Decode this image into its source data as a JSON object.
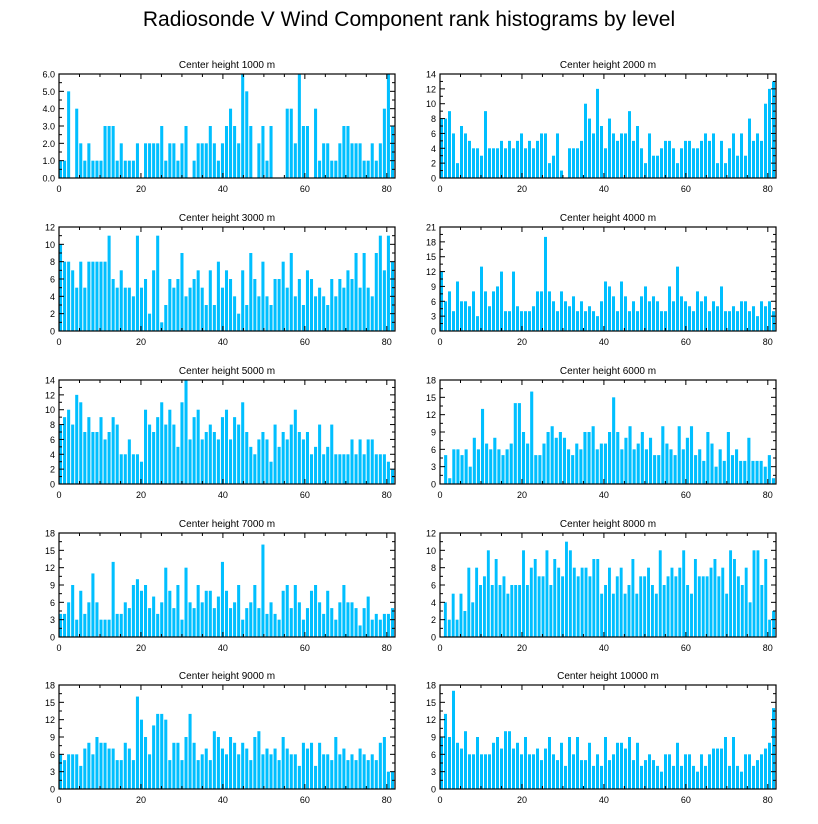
{
  "title": "Radiosonde V Wind Component rank histograms by level",
  "bar_color": "#00bfff",
  "chart_data": [
    {
      "type": "bar",
      "title": "Center height 1000 m",
      "ylim": [
        0,
        6
      ],
      "yticks": [
        "0.0",
        "1.0",
        "2.0",
        "3.0",
        "4.0",
        "5.0",
        "6.0"
      ],
      "ytick_values": [
        0,
        1,
        2,
        3,
        4,
        5,
        6
      ],
      "xlim": [
        0,
        82
      ],
      "xticks": [
        0,
        20,
        40,
        60,
        80
      ],
      "xlabel": "",
      "ylabel": "",
      "values": [
        1,
        1,
        5,
        0,
        4,
        2,
        1,
        2,
        1,
        1,
        1,
        3,
        3,
        3,
        1,
        2,
        1,
        1,
        1,
        2,
        0,
        2,
        2,
        2,
        2,
        3,
        1,
        2,
        2,
        1,
        2,
        3,
        0,
        1,
        2,
        2,
        2,
        3,
        2,
        1,
        2,
        3,
        4,
        3,
        2,
        6,
        5,
        3,
        0,
        2,
        3,
        1,
        3,
        0,
        0,
        0,
        4,
        4,
        2,
        6,
        3,
        3,
        0,
        4,
        1,
        2,
        2,
        1,
        1,
        2,
        3,
        3,
        2,
        2,
        2,
        1,
        1,
        2,
        1,
        2,
        4,
        6,
        3
      ]
    },
    {
      "type": "bar",
      "title": "Center height 2000 m",
      "ylim": [
        0,
        14
      ],
      "yticks": [
        "0",
        "2",
        "4",
        "6",
        "8",
        "10",
        "12",
        "14"
      ],
      "ytick_values": [
        0,
        2,
        4,
        6,
        8,
        10,
        12,
        14
      ],
      "xlim": [
        0,
        82
      ],
      "xticks": [
        0,
        20,
        40,
        60,
        80
      ],
      "xlabel": "",
      "ylabel": "",
      "values": [
        8,
        8,
        9,
        6,
        2,
        7,
        6,
        5,
        4,
        4,
        3,
        9,
        4,
        4,
        4,
        5,
        4,
        5,
        4,
        5,
        6,
        4,
        5,
        4,
        5,
        6,
        6,
        2,
        3,
        6,
        1,
        0,
        4,
        4,
        4,
        5,
        10,
        8,
        6,
        12,
        7,
        4,
        8,
        6,
        5,
        6,
        6,
        9,
        5,
        7,
        4,
        2,
        6,
        3,
        3,
        4,
        5,
        5,
        4,
        2,
        4,
        5,
        5,
        4,
        4,
        5,
        6,
        5,
        6,
        2,
        5,
        2,
        4,
        6,
        3,
        6,
        3,
        8,
        5,
        6,
        5,
        10,
        12,
        13
      ]
    },
    {
      "type": "bar",
      "title": "Center height 3000 m",
      "ylim": [
        0,
        12
      ],
      "yticks": [
        "0",
        "2",
        "4",
        "6",
        "8",
        "10",
        "12"
      ],
      "ytick_values": [
        0,
        2,
        4,
        6,
        8,
        10,
        12
      ],
      "xlim": [
        0,
        82
      ],
      "xticks": [
        0,
        20,
        40,
        60,
        80
      ],
      "xlabel": "",
      "ylabel": "",
      "values": [
        10,
        8,
        8,
        7,
        5,
        8,
        5,
        8,
        8,
        8,
        8,
        8,
        11,
        6,
        5,
        7,
        5,
        5,
        4,
        11,
        5,
        6,
        2,
        7,
        11,
        1,
        3,
        6,
        5,
        6,
        9,
        4,
        5,
        6,
        7,
        5,
        3,
        7,
        3,
        8,
        5,
        7,
        6,
        4,
        2,
        7,
        3,
        9,
        6,
        4,
        8,
        4,
        3,
        6,
        6,
        8,
        5,
        9,
        4,
        6,
        3,
        7,
        6,
        4,
        5,
        4,
        3,
        6,
        4,
        6,
        5,
        7,
        6,
        9,
        5,
        9,
        5,
        4,
        9,
        11,
        7,
        11,
        8
      ]
    },
    {
      "type": "bar",
      "title": "Center height 4000 m",
      "ylim": [
        0,
        21
      ],
      "yticks": [
        "0",
        "3",
        "6",
        "9",
        "12",
        "15",
        "18",
        "21"
      ],
      "ytick_values": [
        0,
        3,
        6,
        9,
        12,
        15,
        18,
        21
      ],
      "xlim": [
        0,
        82
      ],
      "xticks": [
        0,
        20,
        40,
        60,
        80
      ],
      "xlabel": "",
      "ylabel": "",
      "values": [
        12,
        6,
        8,
        4,
        10,
        6,
        6,
        5,
        8,
        3,
        13,
        8,
        5,
        8,
        9,
        12,
        4,
        4,
        12,
        5,
        4,
        4,
        4,
        5,
        8,
        8,
        19,
        8,
        6,
        4,
        8,
        6,
        5,
        7,
        4,
        6,
        4,
        5,
        4,
        3,
        6,
        10,
        9,
        7,
        4,
        10,
        7,
        4,
        6,
        4,
        7,
        9,
        6,
        7,
        6,
        4,
        4,
        9,
        6,
        13,
        7,
        6,
        5,
        4,
        8,
        6,
        7,
        4,
        6,
        5,
        9,
        4,
        4,
        5,
        4,
        6,
        6,
        4,
        5,
        3,
        6,
        5,
        6,
        4
      ]
    },
    {
      "type": "bar",
      "title": "Center height 5000 m",
      "ylim": [
        0,
        14
      ],
      "yticks": [
        "0",
        "2",
        "4",
        "6",
        "8",
        "10",
        "12",
        "14"
      ],
      "ytick_values": [
        0,
        2,
        4,
        6,
        8,
        10,
        12,
        14
      ],
      "xlim": [
        0,
        82
      ],
      "xticks": [
        0,
        20,
        40,
        60,
        80
      ],
      "xlabel": "",
      "ylabel": "",
      "values": [
        8,
        9,
        10,
        8,
        12,
        11,
        7,
        9,
        7,
        7,
        9,
        6,
        7,
        9,
        8,
        4,
        4,
        6,
        4,
        4,
        3,
        10,
        8,
        7,
        9,
        11,
        8,
        10,
        8,
        5,
        11,
        14,
        6,
        9,
        10,
        6,
        7,
        8,
        7,
        6,
        9,
        10,
        6,
        9,
        8,
        11,
        7,
        5,
        4,
        6,
        7,
        6,
        3,
        8,
        5,
        7,
        6,
        8,
        10,
        7,
        6,
        7,
        4,
        5,
        8,
        4,
        5,
        8,
        4,
        4,
        4,
        4,
        6,
        4,
        6,
        4,
        6,
        6,
        4,
        4,
        4,
        3,
        2
      ]
    },
    {
      "type": "bar",
      "title": "Center height 6000 m",
      "ylim": [
        0,
        18
      ],
      "yticks": [
        "0",
        "3",
        "6",
        "9",
        "12",
        "15",
        "18"
      ],
      "ytick_values": [
        0,
        3,
        6,
        9,
        12,
        15,
        18
      ],
      "xlim": [
        0,
        82
      ],
      "xticks": [
        0,
        20,
        40,
        60,
        80
      ],
      "xlabel": "",
      "ylabel": "",
      "values": [
        0,
        5,
        1,
        6,
        6,
        5,
        6,
        3,
        8,
        6,
        13,
        7,
        6,
        8,
        6,
        5,
        6,
        7,
        14,
        14,
        9,
        7,
        16,
        5,
        5,
        7,
        9,
        10,
        8,
        9,
        8,
        6,
        5,
        7,
        6,
        9,
        9,
        10,
        6,
        7,
        7,
        9,
        15,
        9,
        6,
        8,
        10,
        6,
        7,
        9,
        6,
        8,
        5,
        5,
        10,
        7,
        6,
        5,
        10,
        6,
        8,
        10,
        5,
        6,
        4,
        9,
        7,
        3,
        6,
        4,
        9,
        5,
        6,
        4,
        4,
        8,
        4,
        4,
        4,
        3,
        5,
        1
      ]
    },
    {
      "type": "bar",
      "title": "Center height 7000 m",
      "ylim": [
        0,
        18
      ],
      "yticks": [
        "0",
        "3",
        "6",
        "9",
        "12",
        "15",
        "18"
      ],
      "ytick_values": [
        0,
        3,
        6,
        9,
        12,
        15,
        18
      ],
      "xlim": [
        0,
        82
      ],
      "xticks": [
        0,
        20,
        40,
        60,
        80
      ],
      "xlabel": "",
      "ylabel": "",
      "values": [
        4,
        4,
        6,
        9,
        3,
        8,
        4,
        6,
        11,
        6,
        3,
        3,
        3,
        13,
        4,
        4,
        6,
        5,
        9,
        10,
        8,
        9,
        5,
        7,
        4,
        6,
        12,
        8,
        5,
        9,
        3,
        12,
        6,
        5,
        9,
        6,
        8,
        8,
        5,
        7,
        13,
        8,
        5,
        6,
        9,
        3,
        5,
        6,
        9,
        5,
        16,
        4,
        6,
        4,
        3,
        8,
        9,
        5,
        9,
        6,
        3,
        5,
        8,
        9,
        6,
        4,
        8,
        5,
        3,
        6,
        9,
        6,
        6,
        5,
        2,
        5,
        7,
        3,
        4,
        3,
        4,
        4,
        5
      ]
    },
    {
      "type": "bar",
      "title": "Center height 8000 m",
      "ylim": [
        0,
        12
      ],
      "yticks": [
        "0",
        "2",
        "4",
        "6",
        "8",
        "10",
        "12"
      ],
      "ytick_values": [
        0,
        2,
        4,
        6,
        8,
        10,
        12
      ],
      "xlim": [
        0,
        82
      ],
      "xticks": [
        0,
        20,
        40,
        60,
        80
      ],
      "xlabel": "",
      "ylabel": "",
      "values": [
        0,
        4,
        2,
        5,
        2,
        5,
        3,
        8,
        4,
        8,
        6,
        7,
        10,
        6,
        9,
        6,
        7,
        5,
        6,
        6,
        6,
        10,
        6,
        8,
        9,
        7,
        7,
        10,
        6,
        9,
        8,
        7,
        11,
        10,
        8,
        7,
        8,
        8,
        7,
        9,
        9,
        5,
        6,
        8,
        5,
        7,
        8,
        5,
        6,
        9,
        5,
        7,
        7,
        8,
        6,
        5,
        10,
        6,
        7,
        8,
        7,
        8,
        10,
        6,
        5,
        9,
        7,
        7,
        7,
        8,
        9,
        7,
        8,
        5,
        10,
        9,
        7,
        6,
        8,
        4,
        10,
        10,
        6,
        9,
        2,
        3
      ]
    },
    {
      "type": "bar",
      "title": "Center height 9000 m",
      "ylim": [
        0,
        18
      ],
      "yticks": [
        "0",
        "3",
        "6",
        "9",
        "12",
        "15",
        "18"
      ],
      "ytick_values": [
        0,
        3,
        6,
        9,
        12,
        15,
        18
      ],
      "xlim": [
        0,
        82
      ],
      "xticks": [
        0,
        20,
        40,
        60,
        80
      ],
      "xlabel": "",
      "ylabel": "",
      "values": [
        6,
        5,
        6,
        6,
        6,
        4,
        7,
        8,
        6,
        9,
        8,
        8,
        7,
        7,
        5,
        5,
        8,
        7,
        5,
        16,
        12,
        9,
        6,
        11,
        13,
        13,
        12,
        5,
        8,
        8,
        5,
        9,
        13,
        8,
        5,
        6,
        7,
        5,
        10,
        9,
        7,
        6,
        9,
        8,
        6,
        8,
        7,
        5,
        9,
        10,
        6,
        7,
        6,
        7,
        5,
        9,
        7,
        6,
        6,
        4,
        8,
        7,
        8,
        4,
        8,
        6,
        6,
        5,
        9,
        6,
        7,
        5,
        6,
        5,
        7,
        6,
        5,
        6,
        5,
        8,
        9,
        3,
        3
      ]
    },
    {
      "type": "bar",
      "title": "Center height 10000 m",
      "ylim": [
        0,
        18
      ],
      "yticks": [
        "0",
        "3",
        "6",
        "9",
        "12",
        "15",
        "18"
      ],
      "ytick_values": [
        0,
        3,
        6,
        9,
        12,
        15,
        18
      ],
      "xlim": [
        0,
        82
      ],
      "xticks": [
        0,
        20,
        40,
        60,
        80
      ],
      "xlabel": "",
      "ylabel": "",
      "values": [
        9,
        13,
        9,
        17,
        8,
        7,
        10,
        6,
        6,
        9,
        6,
        6,
        6,
        8,
        9,
        7,
        10,
        10,
        7,
        8,
        6,
        9,
        6,
        6,
        7,
        5,
        7,
        9,
        6,
        5,
        8,
        4,
        9,
        6,
        9,
        5,
        5,
        8,
        4,
        6,
        4,
        9,
        5,
        6,
        8,
        8,
        7,
        9,
        5,
        8,
        4,
        5,
        6,
        5,
        4,
        3,
        6,
        6,
        4,
        8,
        4,
        6,
        6,
        4,
        3,
        6,
        4,
        6,
        7,
        7,
        7,
        9,
        4,
        9,
        4,
        3,
        6,
        6,
        4,
        5,
        6,
        7,
        8,
        14
      ]
    }
  ]
}
